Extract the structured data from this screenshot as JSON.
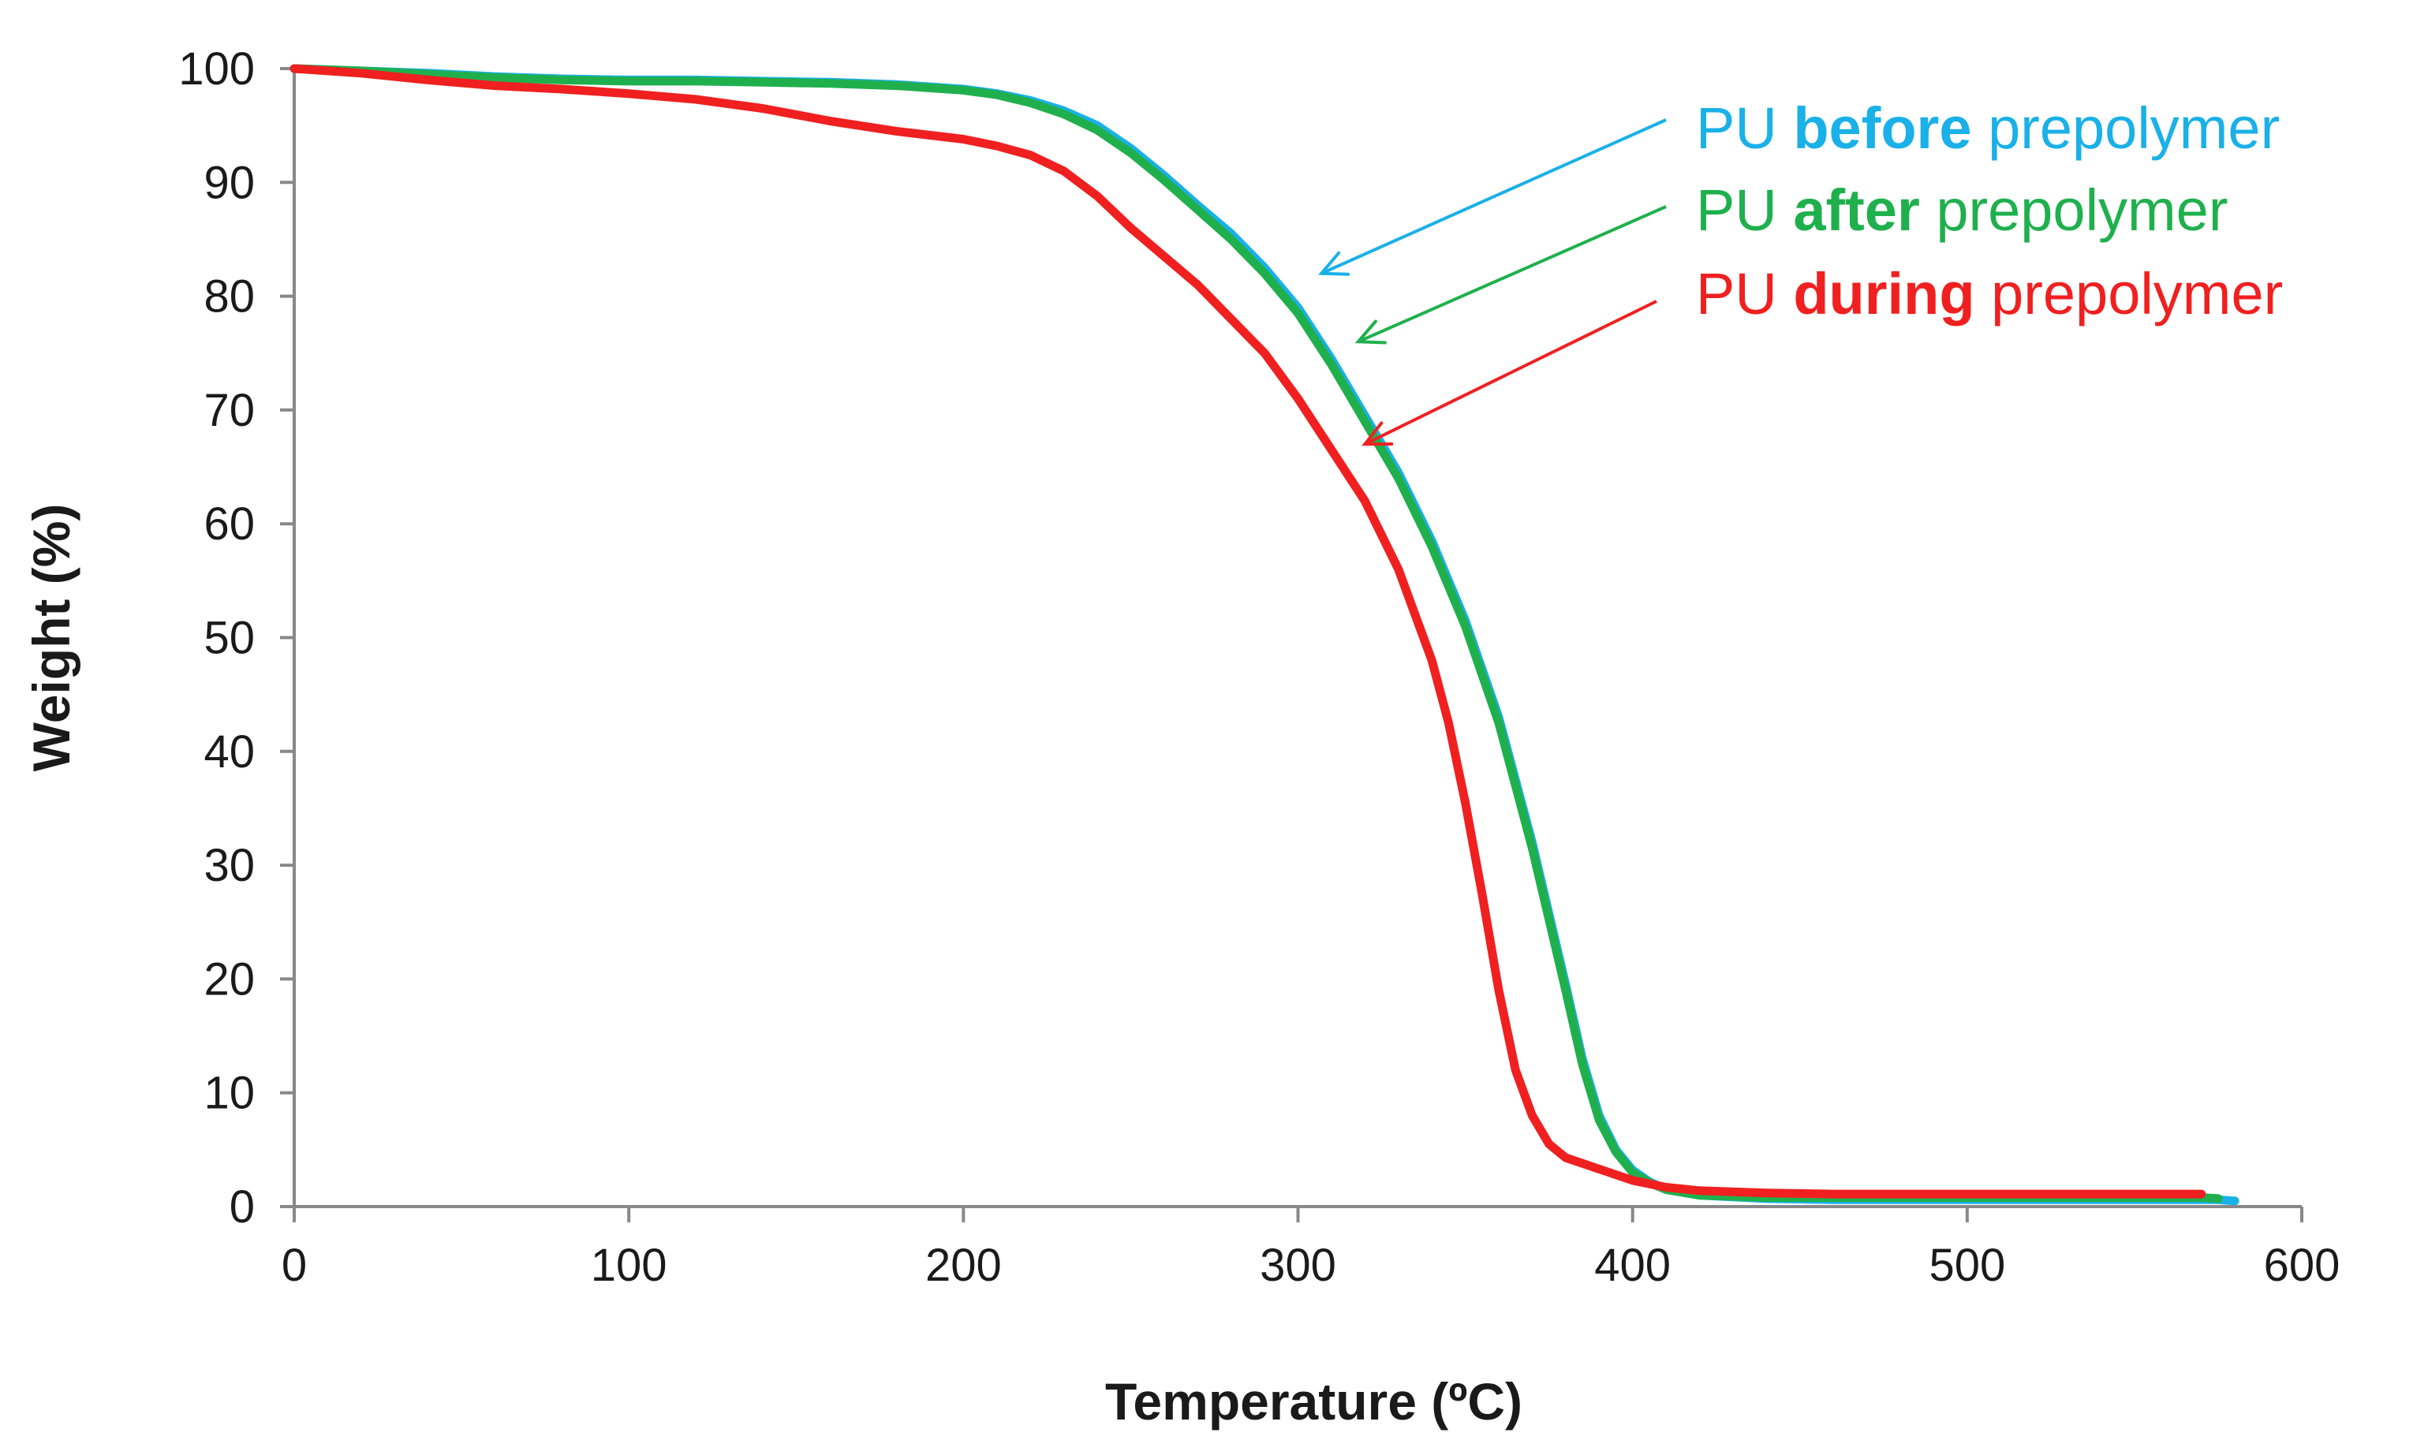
{
  "chart_data": {
    "type": "line",
    "title": "",
    "xlabel": "Temperature (ºC)",
    "ylabel": "Weight (%)",
    "xlim": [
      0,
      600
    ],
    "ylim": [
      0,
      100
    ],
    "x_ticks": [
      "0",
      "100",
      "200",
      "300",
      "400",
      "500",
      "600"
    ],
    "y_ticks": [
      "0",
      "10",
      "20",
      "30",
      "40",
      "50",
      "60",
      "70",
      "80",
      "90",
      "100"
    ],
    "grid": false,
    "series": [
      {
        "name": "PU before prepolymer",
        "label_prefix": "PU ",
        "label_bold": "before",
        "label_suffix": " prepolymer",
        "color": "#1ab0e8",
        "arrow_target": [
          307,
          82
        ],
        "x": [
          0,
          20,
          40,
          60,
          80,
          100,
          120,
          140,
          160,
          180,
          200,
          210,
          220,
          230,
          240,
          250,
          260,
          270,
          280,
          290,
          300,
          310,
          320,
          330,
          340,
          350,
          360,
          370,
          380,
          385,
          390,
          395,
          400,
          405,
          410,
          420,
          440,
          460,
          500,
          540,
          575,
          580
        ],
        "y": [
          100,
          99.8,
          99.6,
          99.3,
          99.1,
          99.0,
          99.0,
          98.9,
          98.8,
          98.6,
          98.2,
          97.8,
          97.2,
          96.3,
          95.0,
          93.0,
          90.6,
          88.0,
          85.5,
          82.5,
          79.0,
          74.5,
          69.5,
          64.5,
          58.5,
          51.5,
          43.0,
          32.0,
          19.5,
          13.0,
          8.0,
          5.0,
          3.2,
          2.2,
          1.5,
          1.0,
          0.7,
          0.6,
          0.6,
          0.6,
          0.6,
          0.5
        ]
      },
      {
        "name": "PU after prepolymer",
        "label_prefix": "PU ",
        "label_bold": "after",
        "label_suffix": " prepolymer",
        "color": "#1fb04d",
        "arrow_target": [
          318,
          76
        ],
        "x": [
          0,
          20,
          40,
          60,
          80,
          100,
          120,
          140,
          160,
          180,
          200,
          210,
          220,
          230,
          240,
          250,
          260,
          270,
          280,
          290,
          300,
          310,
          320,
          330,
          340,
          350,
          360,
          370,
          380,
          385,
          390,
          395,
          400,
          405,
          410,
          420,
          440,
          460,
          500,
          540,
          570,
          575
        ],
        "y": [
          100,
          99.8,
          99.5,
          99.2,
          99.0,
          98.9,
          98.9,
          98.8,
          98.7,
          98.5,
          98.1,
          97.7,
          97.0,
          96.0,
          94.6,
          92.6,
          90.2,
          87.6,
          85.0,
          82.0,
          78.5,
          74.0,
          69.0,
          64.0,
          58.0,
          51.0,
          42.5,
          31.5,
          19.0,
          12.5,
          7.6,
          4.8,
          3.0,
          2.1,
          1.5,
          1.0,
          0.8,
          0.8,
          0.8,
          0.8,
          0.8,
          0.7
        ]
      },
      {
        "name": "PU during prepolymer",
        "label_prefix": "PU ",
        "label_bold": "during",
        "label_suffix": " prepolymer",
        "color": "#f02020",
        "arrow_target": [
          320,
          67
        ],
        "x": [
          0,
          20,
          40,
          60,
          80,
          100,
          120,
          140,
          160,
          180,
          200,
          210,
          220,
          230,
          240,
          250,
          260,
          270,
          280,
          290,
          300,
          310,
          320,
          330,
          340,
          345,
          350,
          355,
          360,
          365,
          370,
          375,
          380,
          390,
          400,
          410,
          420,
          440,
          460,
          500,
          540,
          570
        ],
        "y": [
          100,
          99.6,
          99.0,
          98.5,
          98.2,
          97.8,
          97.3,
          96.5,
          95.4,
          94.5,
          93.8,
          93.2,
          92.4,
          91.0,
          88.8,
          86.0,
          83.5,
          81.0,
          78.0,
          75.0,
          71.0,
          66.5,
          62.0,
          56.0,
          48.0,
          42.5,
          35.5,
          27.5,
          19.0,
          12.0,
          8.0,
          5.5,
          4.3,
          3.3,
          2.3,
          1.7,
          1.4,
          1.2,
          1.1,
          1.1,
          1.1,
          1.1
        ]
      }
    ]
  }
}
